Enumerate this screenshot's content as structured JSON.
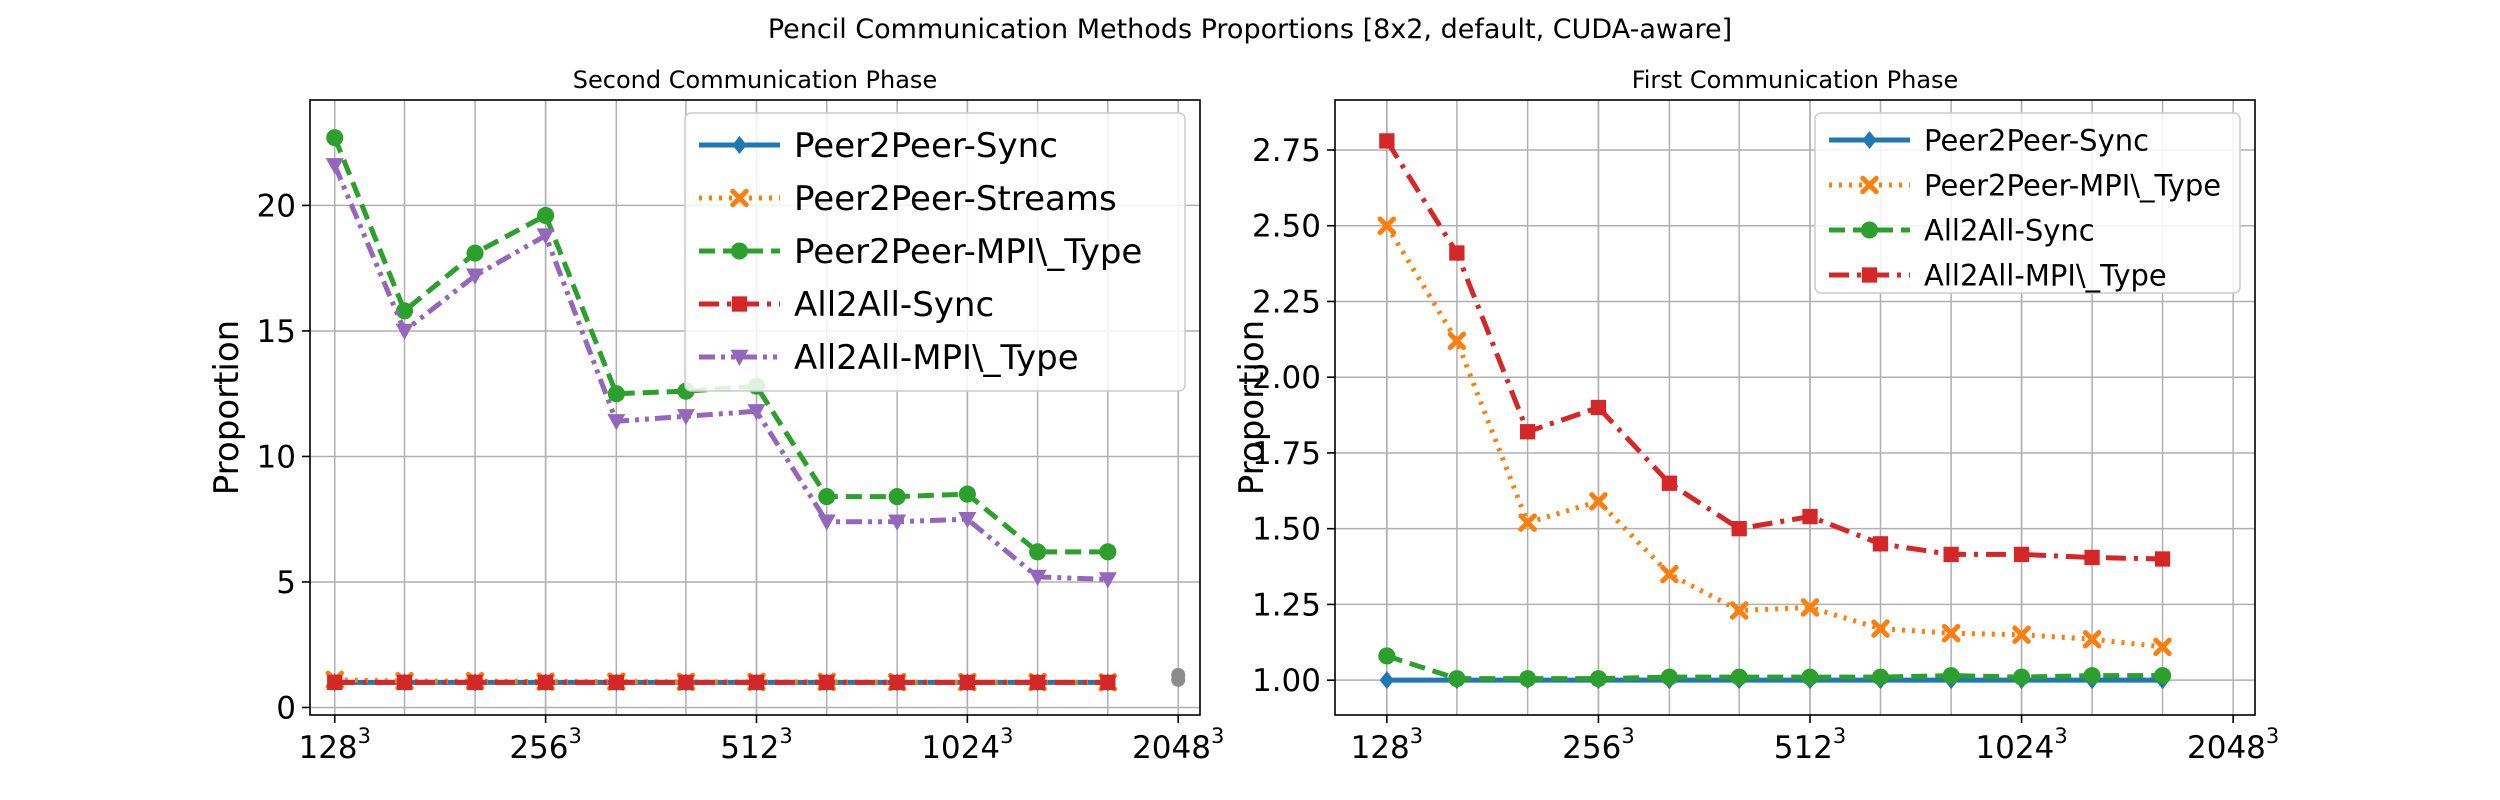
{
  "suptitle": "Pencil Communication Methods Proportions [8x2, default, CUDA-aware]",
  "colors": {
    "blue": "#1f77b4",
    "orange": "#ff7f0e",
    "green": "#2ca02c",
    "red": "#d62728",
    "purple": "#9467bd"
  },
  "chart_data": [
    {
      "type": "line",
      "title": "Second Communication Phase",
      "ylabel": "Proportion",
      "xlabel": "",
      "xscale": "log2",
      "x": [
        128,
        161,
        203,
        256,
        323,
        406,
        512,
        645,
        813,
        1024,
        1290,
        1625
      ],
      "xlim": [
        118,
        2200
      ],
      "xticks": [
        128,
        256,
        512,
        1024,
        2048
      ],
      "xtick_labels": [
        {
          "base": "128",
          "exp": "3"
        },
        {
          "base": "256",
          "exp": "3"
        },
        {
          "base": "512",
          "exp": "3"
        },
        {
          "base": "1024",
          "exp": "3"
        },
        {
          "base": "2048",
          "exp": "3"
        }
      ],
      "ylim": [
        -0.3,
        24.2
      ],
      "yticks": [
        0,
        5,
        10,
        15,
        20
      ],
      "grid": true,
      "legend_position": "top-right",
      "legend_font": 34,
      "series": [
        {
          "name": "Peer2Peer-Sync",
          "color": "blue",
          "linestyle": "solid",
          "marker": "diamond",
          "values": [
            1,
            1,
            1,
            1,
            1,
            1,
            1,
            1,
            1,
            1,
            1,
            1
          ]
        },
        {
          "name": "Peer2Peer-Streams",
          "color": "orange",
          "linestyle": "dotted",
          "marker": "x",
          "values": [
            1.1,
            1.05,
            1.05,
            1.03,
            1.03,
            1.02,
            1.02,
            1.02,
            1.01,
            1.01,
            1.01,
            1.0
          ]
        },
        {
          "name": "Peer2Peer-MPI\\_Type",
          "color": "green",
          "linestyle": "dashed",
          "marker": "circle",
          "values": [
            22.7,
            15.8,
            18.1,
            19.6,
            12.5,
            12.6,
            12.8,
            8.4,
            8.4,
            8.5,
            6.2,
            6.2
          ]
        },
        {
          "name": "All2All-Sync",
          "color": "red",
          "linestyle": "dashdot",
          "marker": "square",
          "values": [
            1,
            1,
            1,
            1,
            1,
            1,
            1,
            1,
            1,
            1,
            1,
            1
          ]
        },
        {
          "name": "All2All-MPI\\_Type",
          "color": "purple",
          "linestyle": "dashdotdot",
          "marker": "triangle-down",
          "values": [
            21.6,
            15.0,
            17.2,
            18.8,
            11.4,
            11.6,
            11.8,
            7.4,
            7.4,
            7.5,
            5.2,
            5.1
          ]
        }
      ],
      "extra_point": {
        "x": 2048,
        "values": [
          1.3,
          1.1
        ]
      }
    },
    {
      "type": "line",
      "title": "First Communication Phase",
      "ylabel": "Proportion",
      "xlabel": "",
      "xscale": "log2",
      "x": [
        128,
        161,
        203,
        256,
        323,
        406,
        512,
        645,
        813,
        1024,
        1290,
        1625
      ],
      "xlim": [
        108,
        2200
      ],
      "xticks": [
        128,
        256,
        512,
        1024,
        2048
      ],
      "xtick_labels": [
        {
          "base": "128",
          "exp": "3"
        },
        {
          "base": "256",
          "exp": "3"
        },
        {
          "base": "512",
          "exp": "3"
        },
        {
          "base": "1024",
          "exp": "3"
        },
        {
          "base": "2048",
          "exp": "3"
        }
      ],
      "ylim": [
        0.885,
        2.915
      ],
      "yticks": [
        1.0,
        1.25,
        1.5,
        1.75,
        2.0,
        2.25,
        2.5,
        2.75
      ],
      "ytick_labels": [
        "1.00",
        "1.25",
        "1.50",
        "1.75",
        "2.00",
        "2.25",
        "2.50",
        "2.75"
      ],
      "grid": true,
      "legend_position": "top-right",
      "legend_font": 29,
      "series": [
        {
          "name": "Peer2Peer-Sync",
          "color": "blue",
          "linestyle": "solid",
          "marker": "diamond",
          "values": [
            1.0,
            1.0,
            1.0,
            1.0,
            1.0,
            1.0,
            1.0,
            1.0,
            1.0,
            1.0,
            1.0,
            1.0
          ]
        },
        {
          "name": "Peer2Peer-MPI\\_Type",
          "color": "orange",
          "linestyle": "dotted",
          "marker": "x",
          "values": [
            2.5,
            2.12,
            1.52,
            1.59,
            1.35,
            1.23,
            1.24,
            1.17,
            1.155,
            1.15,
            1.135,
            1.11
          ]
        },
        {
          "name": "All2All-Sync",
          "color": "green",
          "linestyle": "dashed",
          "marker": "circle",
          "values": [
            1.08,
            1.005,
            1.005,
            1.005,
            1.01,
            1.01,
            1.01,
            1.01,
            1.015,
            1.01,
            1.015,
            1.015
          ]
        },
        {
          "name": "All2All-MPI\\_Type",
          "color": "red",
          "linestyle": "dashdot",
          "marker": "square",
          "values": [
            2.78,
            2.41,
            1.82,
            1.9,
            1.65,
            1.5,
            1.54,
            1.45,
            1.415,
            1.415,
            1.405,
            1.4
          ]
        }
      ]
    }
  ]
}
